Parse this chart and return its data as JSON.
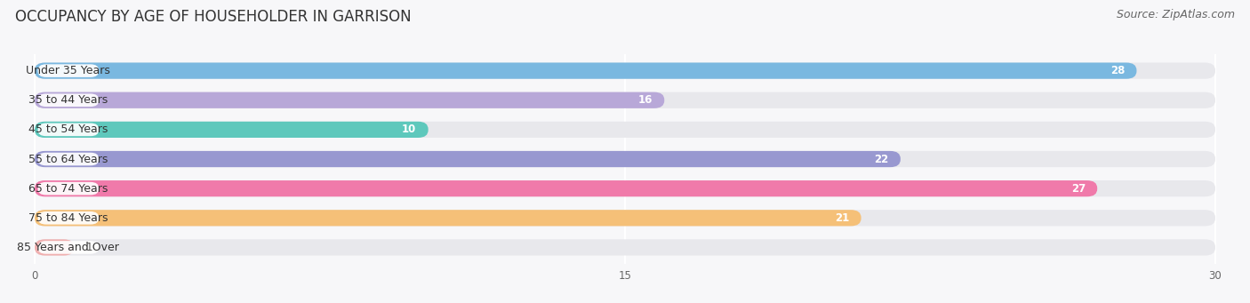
{
  "title": "OCCUPANCY BY AGE OF HOUSEHOLDER IN GARRISON",
  "source": "Source: ZipAtlas.com",
  "categories": [
    "Under 35 Years",
    "35 to 44 Years",
    "45 to 54 Years",
    "55 to 64 Years",
    "65 to 74 Years",
    "75 to 84 Years",
    "85 Years and Over"
  ],
  "values": [
    28,
    16,
    10,
    22,
    27,
    21,
    1
  ],
  "bar_colors": [
    "#7ab8e0",
    "#b8a8d8",
    "#5ec8bc",
    "#9898d0",
    "#f07aaa",
    "#f5c078",
    "#f0b0b0"
  ],
  "bar_bg_color": "#e8e8ec",
  "xlim_max": 30,
  "xticks": [
    0,
    15,
    30
  ],
  "title_fontsize": 12,
  "source_fontsize": 9,
  "label_fontsize": 9,
  "value_fontsize": 8.5,
  "fig_width": 14.06,
  "fig_height": 3.41,
  "dpi": 100,
  "bg_color": "#f7f7f9"
}
